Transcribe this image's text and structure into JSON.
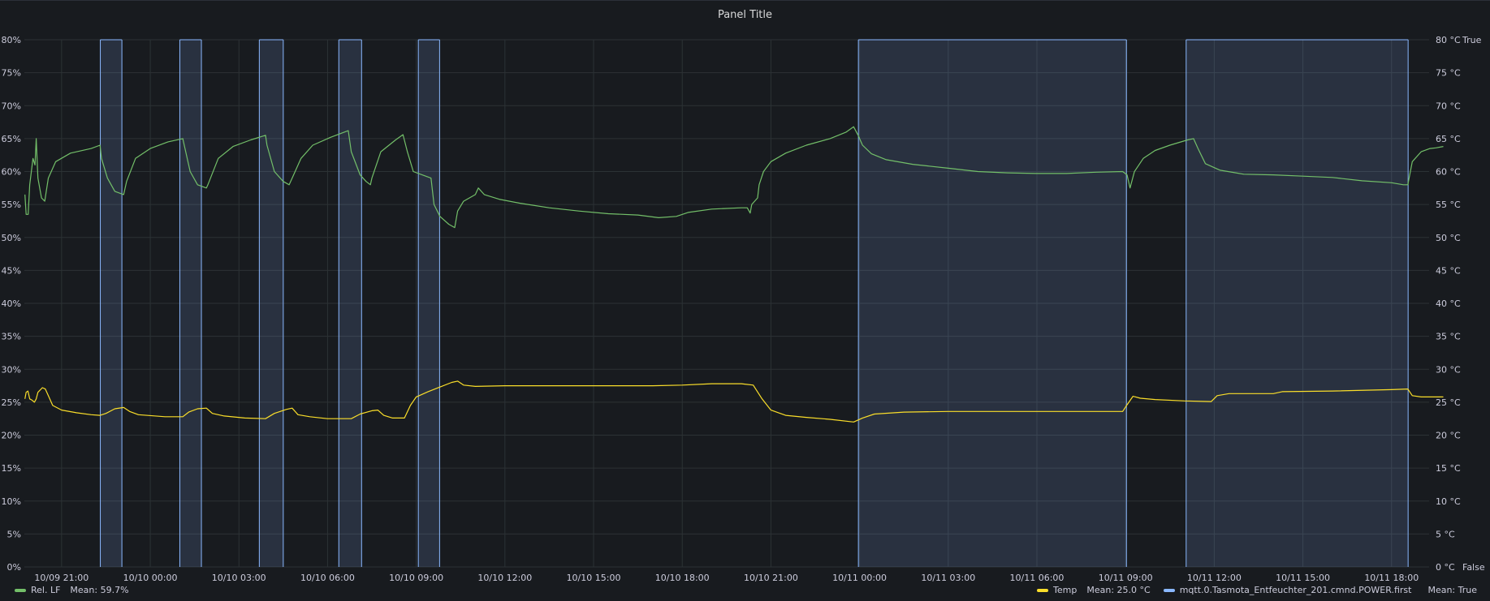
{
  "panel": {
    "title": "Panel Title"
  },
  "colors": {
    "humidity": "#73bf69",
    "temp": "#fade2a",
    "power": "#8ab8ff",
    "grid": "#2c3235",
    "text": "#ccccdc"
  },
  "legend": {
    "humidity": {
      "name": "Rel. LF",
      "stat": "Mean: 59.7%"
    },
    "temp": {
      "name": "Temp",
      "stat": "Mean: 25.0 °C"
    },
    "power": {
      "name": "mqtt.0.Tasmota_Entfeuchter_201.cmnd.POWER.first",
      "stat": "Mean: True"
    }
  },
  "chart_data": {
    "type": "line",
    "title": "Panel Title",
    "x_unit": "hours since 10/09 21:00",
    "x_ticks": [
      {
        "x": 0,
        "label": "10/09 21:00"
      },
      {
        "x": 3,
        "label": "10/10 00:00"
      },
      {
        "x": 6,
        "label": "10/10 03:00"
      },
      {
        "x": 9,
        "label": "10/10 06:00"
      },
      {
        "x": 12,
        "label": "10/10 09:00"
      },
      {
        "x": 15,
        "label": "10/10 12:00"
      },
      {
        "x": 18,
        "label": "10/10 15:00"
      },
      {
        "x": 21,
        "label": "10/10 18:00"
      },
      {
        "x": 24,
        "label": "10/10 21:00"
      },
      {
        "x": 27,
        "label": "10/11 00:00"
      },
      {
        "x": 30,
        "label": "10/11 03:00"
      },
      {
        "x": 33,
        "label": "10/11 06:00"
      },
      {
        "x": 36,
        "label": "10/11 09:00"
      },
      {
        "x": 39,
        "label": "10/11 12:00"
      },
      {
        "x": 42,
        "label": "10/11 15:00"
      },
      {
        "x": 45,
        "label": "10/11 18:00"
      }
    ],
    "xlim": [
      -1.26,
      46.27
    ],
    "y_left": {
      "ylim": [
        0,
        80
      ],
      "ticks": [
        "0%",
        "5%",
        "10%",
        "15%",
        "20%",
        "25%",
        "30%",
        "35%",
        "40%",
        "45%",
        "50%",
        "55%",
        "60%",
        "65%",
        "70%",
        "75%",
        "80%"
      ]
    },
    "y_right": {
      "ylim": [
        0,
        80
      ],
      "ticks": [
        "0 °C",
        "5 °C",
        "10 °C",
        "15 °C",
        "20 °C",
        "25 °C",
        "30 °C",
        "35 °C",
        "40 °C",
        "45 °C",
        "50 °C",
        "55 °C",
        "60 °C",
        "65 °C",
        "70 °C",
        "75 °C",
        "80 °C"
      ]
    },
    "y_bool": {
      "true_label": "True",
      "false_label": "False"
    },
    "grid": true,
    "series": [
      {
        "name": "Rel. LF",
        "axis": "left",
        "points": [
          [
            -1.24,
            56.5
          ],
          [
            -1.2,
            53.5
          ],
          [
            -1.13,
            53.5
          ],
          [
            -1.08,
            58
          ],
          [
            -0.97,
            62
          ],
          [
            -0.9,
            61
          ],
          [
            -0.86,
            65
          ],
          [
            -0.8,
            59
          ],
          [
            -0.68,
            56
          ],
          [
            -0.57,
            55.5
          ],
          [
            -0.45,
            59
          ],
          [
            -0.2,
            61.5
          ],
          [
            0.3,
            62.8
          ],
          [
            1,
            63.5
          ],
          [
            1.3,
            64
          ],
          [
            1.35,
            62
          ],
          [
            1.55,
            59
          ],
          [
            1.8,
            57
          ],
          [
            2.1,
            56.5
          ],
          [
            2.2,
            58.5
          ],
          [
            2.5,
            62
          ],
          [
            3,
            63.5
          ],
          [
            3.6,
            64.5
          ],
          [
            4.1,
            65
          ],
          [
            4.15,
            64
          ],
          [
            4.35,
            60
          ],
          [
            4.6,
            58
          ],
          [
            4.9,
            57.5
          ],
          [
            4.95,
            58
          ],
          [
            5.3,
            62
          ],
          [
            5.8,
            63.8
          ],
          [
            6.4,
            64.8
          ],
          [
            6.9,
            65.5
          ],
          [
            6.95,
            64
          ],
          [
            7.2,
            60
          ],
          [
            7.5,
            58.5
          ],
          [
            7.7,
            58
          ],
          [
            7.8,
            59
          ],
          [
            8.1,
            62
          ],
          [
            8.5,
            64
          ],
          [
            9.1,
            65.2
          ],
          [
            9.7,
            66.2
          ],
          [
            9.8,
            63
          ],
          [
            10.1,
            59.5
          ],
          [
            10.3,
            58.5
          ],
          [
            10.45,
            58
          ],
          [
            10.5,
            59
          ],
          [
            10.8,
            63
          ],
          [
            11.3,
            64.8
          ],
          [
            11.55,
            65.6
          ],
          [
            11.7,
            63
          ],
          [
            11.9,
            60
          ],
          [
            12.2,
            59.5
          ],
          [
            12.5,
            59
          ],
          [
            12.6,
            55
          ],
          [
            12.8,
            53.2
          ],
          [
            13.1,
            52
          ],
          [
            13.3,
            51.5
          ],
          [
            13.4,
            54
          ],
          [
            13.6,
            55.5
          ],
          [
            14,
            56.5
          ],
          [
            14.1,
            57.5
          ],
          [
            14.3,
            56.5
          ],
          [
            14.8,
            55.8
          ],
          [
            15.5,
            55.2
          ],
          [
            16.5,
            54.5
          ],
          [
            17.5,
            54
          ],
          [
            18.5,
            53.6
          ],
          [
            19.5,
            53.4
          ],
          [
            20.2,
            53
          ],
          [
            20.8,
            53.2
          ],
          [
            21.2,
            53.8
          ],
          [
            22,
            54.3
          ],
          [
            23,
            54.5
          ],
          [
            23.2,
            54.5
          ],
          [
            23.3,
            53.7
          ],
          [
            23.35,
            55
          ],
          [
            23.55,
            56
          ],
          [
            23.6,
            58
          ],
          [
            23.75,
            60
          ],
          [
            24,
            61.5
          ],
          [
            24.5,
            62.8
          ],
          [
            25.2,
            64
          ],
          [
            26,
            65
          ],
          [
            26.55,
            66
          ],
          [
            26.8,
            66.8
          ],
          [
            26.95,
            65.5
          ],
          [
            27.1,
            64
          ],
          [
            27.4,
            62.7
          ],
          [
            27.9,
            61.8
          ],
          [
            28.8,
            61.1
          ],
          [
            30,
            60.5
          ],
          [
            31,
            60
          ],
          [
            32,
            59.8
          ],
          [
            33,
            59.7
          ],
          [
            34,
            59.7
          ],
          [
            35,
            59.9
          ],
          [
            35.9,
            60
          ],
          [
            36.05,
            59.5
          ],
          [
            36.15,
            57.5
          ],
          [
            36.3,
            60
          ],
          [
            36.6,
            62
          ],
          [
            37,
            63.2
          ],
          [
            37.5,
            64
          ],
          [
            38.1,
            64.8
          ],
          [
            38.3,
            65
          ],
          [
            38.45,
            63.5
          ],
          [
            38.7,
            61.2
          ],
          [
            39.2,
            60.2
          ],
          [
            40,
            59.6
          ],
          [
            41,
            59.5
          ],
          [
            42,
            59.3
          ],
          [
            43,
            59.1
          ],
          [
            44,
            58.6
          ],
          [
            45,
            58.3
          ],
          [
            45.4,
            58
          ],
          [
            45.55,
            58
          ],
          [
            45.7,
            61.5
          ],
          [
            46,
            63
          ],
          [
            46.3,
            63.5
          ],
          [
            46.5,
            63.6
          ],
          [
            46.75,
            63.8
          ]
        ]
      },
      {
        "name": "Temp",
        "axis": "right",
        "points": [
          [
            -1.24,
            25.5
          ],
          [
            -1.2,
            26.5
          ],
          [
            -1.14,
            26.7
          ],
          [
            -1.08,
            25.5
          ],
          [
            -1,
            25.3
          ],
          [
            -0.92,
            25
          ],
          [
            -0.86,
            25.5
          ],
          [
            -0.8,
            26.5
          ],
          [
            -0.65,
            27.2
          ],
          [
            -0.55,
            27
          ],
          [
            -0.45,
            26
          ],
          [
            -0.3,
            24.5
          ],
          [
            0,
            23.8
          ],
          [
            0.5,
            23.4
          ],
          [
            1,
            23.1
          ],
          [
            1.3,
            23
          ],
          [
            1.5,
            23.3
          ],
          [
            1.8,
            24
          ],
          [
            2.1,
            24.2
          ],
          [
            2.3,
            23.6
          ],
          [
            2.6,
            23.1
          ],
          [
            3.5,
            22.8
          ],
          [
            4.1,
            22.8
          ],
          [
            4.3,
            23.5
          ],
          [
            4.6,
            24
          ],
          [
            4.9,
            24.1
          ],
          [
            5.1,
            23.3
          ],
          [
            5.5,
            22.9
          ],
          [
            6.2,
            22.6
          ],
          [
            6.9,
            22.5
          ],
          [
            7.2,
            23.3
          ],
          [
            7.6,
            23.9
          ],
          [
            7.8,
            24.1
          ],
          [
            8,
            23.1
          ],
          [
            8.4,
            22.8
          ],
          [
            9,
            22.5
          ],
          [
            9.8,
            22.5
          ],
          [
            10.1,
            23.2
          ],
          [
            10.5,
            23.7
          ],
          [
            10.7,
            23.8
          ],
          [
            10.9,
            23
          ],
          [
            11.2,
            22.6
          ],
          [
            11.6,
            22.6
          ],
          [
            11.8,
            24.5
          ],
          [
            12,
            25.8
          ],
          [
            12.4,
            26.6
          ],
          [
            12.8,
            27.3
          ],
          [
            13.2,
            28
          ],
          [
            13.4,
            28.2
          ],
          [
            13.6,
            27.6
          ],
          [
            14,
            27.4
          ],
          [
            15,
            27.5
          ],
          [
            16,
            27.5
          ],
          [
            17,
            27.5
          ],
          [
            18,
            27.5
          ],
          [
            19,
            27.5
          ],
          [
            20,
            27.5
          ],
          [
            21,
            27.6
          ],
          [
            22,
            27.8
          ],
          [
            23,
            27.8
          ],
          [
            23.4,
            27.6
          ],
          [
            23.7,
            25.5
          ],
          [
            24,
            23.8
          ],
          [
            24.5,
            23
          ],
          [
            25.2,
            22.7
          ],
          [
            26,
            22.4
          ],
          [
            26.8,
            22
          ],
          [
            27.1,
            22.6
          ],
          [
            27.5,
            23.2
          ],
          [
            28.5,
            23.5
          ],
          [
            30,
            23.6
          ],
          [
            32,
            23.6
          ],
          [
            34,
            23.6
          ],
          [
            35.9,
            23.6
          ],
          [
            36.05,
            24.6
          ],
          [
            36.25,
            25.9
          ],
          [
            36.5,
            25.6
          ],
          [
            37,
            25.4
          ],
          [
            38,
            25.2
          ],
          [
            38.9,
            25.1
          ],
          [
            39.1,
            26
          ],
          [
            39.5,
            26.3
          ],
          [
            41,
            26.3
          ],
          [
            41.3,
            26.6
          ],
          [
            43,
            26.7
          ],
          [
            45,
            26.9
          ],
          [
            45.55,
            27
          ],
          [
            45.7,
            26
          ],
          [
            46,
            25.8
          ],
          [
            46.75,
            25.8
          ]
        ]
      }
    ],
    "power_on_intervals": [
      [
        1.31,
        2.04
      ],
      [
        4.0,
        4.73
      ],
      [
        6.69,
        7.5
      ],
      [
        9.38,
        10.15
      ],
      [
        12.07,
        12.79
      ],
      [
        26.96,
        36.03
      ],
      [
        38.05,
        45.56
      ]
    ]
  }
}
